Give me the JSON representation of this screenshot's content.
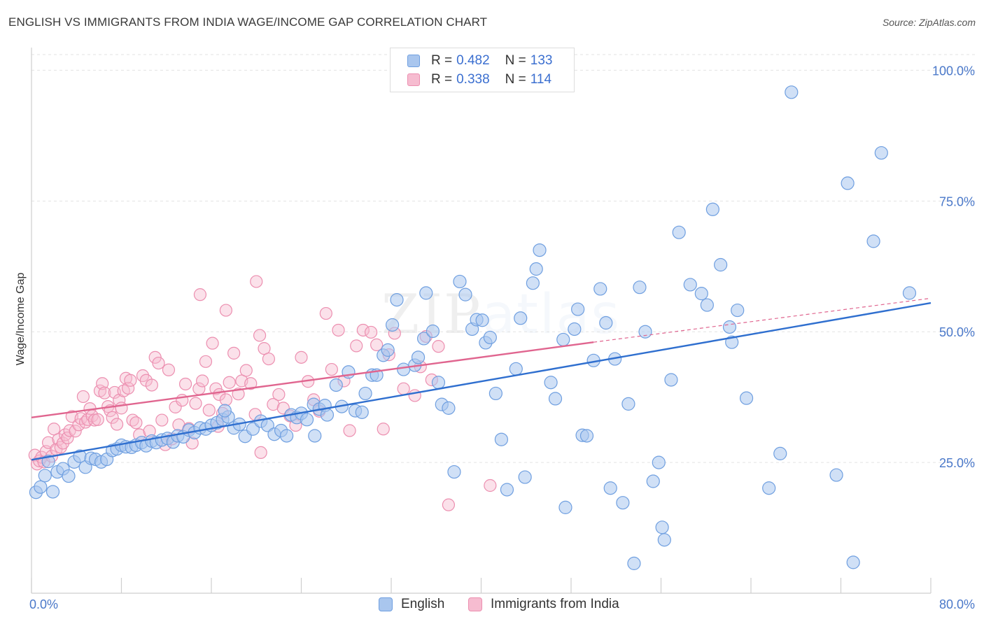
{
  "title": "ENGLISH VS IMMIGRANTS FROM INDIA WAGE/INCOME GAP CORRELATION CHART",
  "source": "Source: ZipAtlas.com",
  "watermark": {
    "zip": "ZIP",
    "atlas": "atlas"
  },
  "colors": {
    "english_fill": "#a9c6ee",
    "english_stroke": "#6f9fe0",
    "english_line": "#2f6fcf",
    "india_fill": "#f6bcd0",
    "india_stroke": "#ec8fb0",
    "india_line": "#e0658f",
    "grid": "#e3e3e3",
    "tick_label": "#4a78c9"
  },
  "legend": {
    "rows": [
      {
        "r_label": "R =",
        "r_value": "0.482",
        "n_label": "N =",
        "n_value": "133"
      },
      {
        "r_label": "R =",
        "r_value": "0.338",
        "n_label": "N =",
        "n_value": "114"
      }
    ]
  },
  "bottom_legend": {
    "english": "English",
    "india": "Immigrants from India"
  },
  "chart_data": {
    "type": "scatter",
    "title": "ENGLISH VS IMMIGRANTS FROM INDIA WAGE/INCOME GAP CORRELATION CHART",
    "xlabel": "",
    "ylabel": "Wage/Income Gap",
    "xlim": [
      0,
      80
    ],
    "ylim": [
      0,
      103
    ],
    "x_tick_labels": [
      "0.0%",
      "80.0%"
    ],
    "y_ticks": [
      25,
      50,
      75,
      100
    ],
    "y_tick_labels": [
      "25.0%",
      "50.0%",
      "75.0%",
      "100.0%"
    ],
    "grid": true,
    "legend_position": "top-center",
    "series": [
      {
        "name": "English",
        "r": 0.482,
        "n": 133,
        "trend": {
          "x0": 0,
          "y0": 25.5,
          "x1": 80,
          "y1": 55.5,
          "dash_to": null
        },
        "points": [
          [
            0.4,
            19.3
          ],
          [
            0.8,
            20.3
          ],
          [
            1.2,
            22.5
          ],
          [
            1.5,
            25.2
          ],
          [
            1.9,
            19.4
          ],
          [
            2.3,
            23.2
          ],
          [
            2.8,
            23.8
          ],
          [
            3.3,
            22.4
          ],
          [
            3.8,
            25.1
          ],
          [
            4.3,
            26.2
          ],
          [
            4.8,
            24.1
          ],
          [
            5.3,
            25.8
          ],
          [
            5.7,
            25.6
          ],
          [
            6.2,
            25.1
          ],
          [
            6.7,
            25.6
          ],
          [
            7.2,
            27.3
          ],
          [
            7.6,
            27.6
          ],
          [
            8.0,
            28.3
          ],
          [
            8.4,
            28.0
          ],
          [
            8.9,
            27.9
          ],
          [
            9.3,
            28.3
          ],
          [
            9.8,
            28.8
          ],
          [
            10.2,
            28.2
          ],
          [
            10.7,
            29.1
          ],
          [
            11.1,
            28.8
          ],
          [
            11.6,
            29.3
          ],
          [
            12.1,
            29.6
          ],
          [
            12.6,
            28.9
          ],
          [
            13.0,
            30.1
          ],
          [
            13.5,
            29.9
          ],
          [
            14.0,
            31.2
          ],
          [
            14.5,
            30.7
          ],
          [
            15.0,
            31.6
          ],
          [
            15.5,
            31.4
          ],
          [
            16.0,
            32.1
          ],
          [
            16.5,
            32.6
          ],
          [
            17.0,
            33.2
          ],
          [
            17.5,
            33.7
          ],
          [
            17.2,
            34.9
          ],
          [
            18.0,
            31.6
          ],
          [
            18.5,
            32.3
          ],
          [
            19.0,
            30.0
          ],
          [
            19.7,
            31.4
          ],
          [
            20.4,
            32.9
          ],
          [
            21.0,
            32.1
          ],
          [
            21.6,
            30.4
          ],
          [
            22.2,
            31.1
          ],
          [
            22.7,
            30.1
          ],
          [
            23.1,
            34.1
          ],
          [
            23.6,
            33.6
          ],
          [
            24.0,
            34.4
          ],
          [
            24.5,
            33.2
          ],
          [
            25.1,
            36.1
          ],
          [
            25.6,
            35.2
          ],
          [
            26.1,
            35.9
          ],
          [
            25.2,
            30.1
          ],
          [
            26.3,
            34.1
          ],
          [
            27.1,
            39.8
          ],
          [
            27.6,
            35.7
          ],
          [
            28.2,
            42.3
          ],
          [
            28.8,
            34.9
          ],
          [
            29.4,
            34.6
          ],
          [
            29.7,
            38.2
          ],
          [
            30.3,
            41.7
          ],
          [
            30.7,
            41.7
          ],
          [
            31.3,
            45.5
          ],
          [
            31.7,
            46.5
          ],
          [
            32.1,
            51.3
          ],
          [
            32.5,
            56.1
          ],
          [
            33.1,
            42.8
          ],
          [
            34.1,
            43.6
          ],
          [
            34.4,
            45.1
          ],
          [
            34.9,
            48.7
          ],
          [
            35.1,
            57.4
          ],
          [
            35.7,
            50.1
          ],
          [
            36.2,
            40.3
          ],
          [
            36.5,
            36.1
          ],
          [
            37.1,
            35.4
          ],
          [
            37.6,
            23.2
          ],
          [
            38.1,
            59.6
          ],
          [
            38.6,
            57.1
          ],
          [
            39.2,
            50.5
          ],
          [
            39.6,
            52.3
          ],
          [
            40.1,
            52.2
          ],
          [
            40.4,
            47.9
          ],
          [
            40.8,
            48.9
          ],
          [
            41.3,
            38.2
          ],
          [
            41.8,
            29.4
          ],
          [
            42.3,
            19.8
          ],
          [
            43.1,
            42.9
          ],
          [
            43.5,
            52.6
          ],
          [
            43.9,
            22.2
          ],
          [
            44.6,
            59.3
          ],
          [
            44.9,
            62.0
          ],
          [
            45.2,
            65.6
          ],
          [
            46.2,
            40.3
          ],
          [
            46.6,
            37.2
          ],
          [
            47.3,
            48.5
          ],
          [
            47.5,
            16.4
          ],
          [
            48.3,
            50.5
          ],
          [
            48.6,
            54.3
          ],
          [
            49.0,
            30.2
          ],
          [
            49.4,
            30.1
          ],
          [
            50.0,
            44.5
          ],
          [
            50.6,
            58.2
          ],
          [
            51.1,
            51.7
          ],
          [
            51.5,
            20.1
          ],
          [
            51.9,
            44.8
          ],
          [
            52.6,
            17.3
          ],
          [
            53.1,
            36.2
          ],
          [
            53.6,
            5.7
          ],
          [
            54.1,
            58.5
          ],
          [
            54.6,
            50.0
          ],
          [
            55.3,
            21.4
          ],
          [
            55.8,
            25.0
          ],
          [
            56.1,
            12.6
          ],
          [
            56.3,
            10.2
          ],
          [
            56.9,
            40.8
          ],
          [
            57.6,
            69.0
          ],
          [
            58.6,
            59.0
          ],
          [
            59.6,
            57.3
          ],
          [
            60.1,
            55.1
          ],
          [
            60.6,
            73.4
          ],
          [
            61.3,
            62.8
          ],
          [
            62.1,
            50.9
          ],
          [
            62.3,
            48.0
          ],
          [
            62.8,
            54.1
          ],
          [
            63.6,
            37.3
          ],
          [
            65.6,
            20.1
          ],
          [
            66.6,
            26.7
          ],
          [
            67.6,
            95.8
          ],
          [
            71.6,
            22.6
          ],
          [
            72.6,
            78.4
          ],
          [
            73.1,
            5.9
          ],
          [
            74.9,
            67.3
          ],
          [
            75.6,
            84.2
          ],
          [
            78.1,
            57.4
          ]
        ]
      },
      {
        "name": "Immigrants from India",
        "r": 0.338,
        "n": 114,
        "trend": {
          "x0": 0,
          "y0": 33.6,
          "x1": 50,
          "y1": 48.0,
          "dash_to": [
            80,
            56.4
          ]
        },
        "points": [
          [
            0.3,
            26.4
          ],
          [
            0.5,
            24.7
          ],
          [
            0.7,
            25.3
          ],
          [
            0.9,
            26.0
          ],
          [
            1.1,
            25.1
          ],
          [
            1.3,
            27.1
          ],
          [
            1.5,
            28.8
          ],
          [
            1.8,
            26.2
          ],
          [
            2.0,
            31.4
          ],
          [
            2.2,
            27.5
          ],
          [
            2.4,
            29.4
          ],
          [
            2.6,
            27.9
          ],
          [
            2.8,
            28.7
          ],
          [
            3.0,
            30.3
          ],
          [
            3.2,
            29.7
          ],
          [
            3.4,
            31.1
          ],
          [
            3.6,
            33.8
          ],
          [
            3.9,
            31.0
          ],
          [
            4.2,
            32.2
          ],
          [
            4.4,
            33.4
          ],
          [
            4.6,
            37.6
          ],
          [
            4.8,
            32.7
          ],
          [
            5.0,
            33.2
          ],
          [
            5.2,
            35.3
          ],
          [
            5.4,
            33.9
          ],
          [
            5.6,
            33.1
          ],
          [
            5.9,
            33.2
          ],
          [
            6.1,
            38.7
          ],
          [
            6.3,
            40.1
          ],
          [
            6.5,
            38.3
          ],
          [
            6.8,
            35.7
          ],
          [
            7.0,
            34.9
          ],
          [
            7.2,
            33.6
          ],
          [
            7.4,
            38.4
          ],
          [
            7.6,
            32.3
          ],
          [
            7.8,
            36.9
          ],
          [
            8.0,
            35.4
          ],
          [
            8.2,
            38.7
          ],
          [
            8.4,
            41.1
          ],
          [
            8.6,
            39.2
          ],
          [
            8.8,
            40.7
          ],
          [
            9.0,
            33.1
          ],
          [
            9.3,
            32.6
          ],
          [
            9.6,
            30.3
          ],
          [
            9.9,
            41.6
          ],
          [
            10.2,
            40.7
          ],
          [
            10.5,
            31.0
          ],
          [
            10.7,
            39.8
          ],
          [
            11.0,
            45.1
          ],
          [
            11.3,
            44.0
          ],
          [
            11.6,
            33.1
          ],
          [
            11.9,
            28.4
          ],
          [
            12.2,
            42.7
          ],
          [
            12.5,
            29.5
          ],
          [
            12.8,
            35.6
          ],
          [
            13.1,
            32.2
          ],
          [
            13.4,
            36.9
          ],
          [
            13.7,
            40.0
          ],
          [
            14.0,
            31.5
          ],
          [
            14.3,
            28.7
          ],
          [
            14.6,
            36.3
          ],
          [
            14.9,
            39.1
          ],
          [
            15.2,
            40.6
          ],
          [
            15.5,
            44.3
          ],
          [
            15.8,
            35.0
          ],
          [
            16.1,
            47.8
          ],
          [
            16.4,
            39.1
          ],
          [
            16.7,
            38.0
          ],
          [
            17.0,
            34.4
          ],
          [
            17.3,
            37.0
          ],
          [
            17.6,
            40.3
          ],
          [
            18.0,
            45.9
          ],
          [
            18.4,
            38.1
          ],
          [
            18.7,
            40.6
          ],
          [
            19.1,
            42.6
          ],
          [
            19.5,
            40.1
          ],
          [
            19.9,
            34.2
          ],
          [
            20.3,
            49.3
          ],
          [
            20.7,
            46.8
          ],
          [
            21.1,
            44.8
          ],
          [
            21.5,
            36.1
          ],
          [
            22.0,
            38.0
          ],
          [
            22.4,
            35.4
          ],
          [
            23.0,
            33.9
          ],
          [
            23.5,
            32.1
          ],
          [
            24.0,
            45.1
          ],
          [
            24.6,
            40.5
          ],
          [
            25.1,
            37.0
          ],
          [
            25.6,
            34.8
          ],
          [
            26.2,
            53.5
          ],
          [
            26.7,
            42.8
          ],
          [
            27.3,
            50.3
          ],
          [
            27.8,
            40.6
          ],
          [
            28.3,
            31.1
          ],
          [
            28.9,
            47.3
          ],
          [
            29.5,
            50.3
          ],
          [
            30.2,
            49.9
          ],
          [
            30.7,
            47.5
          ],
          [
            31.3,
            31.4
          ],
          [
            31.8,
            45.6
          ],
          [
            32.3,
            49.7
          ],
          [
            33.1,
            39.1
          ],
          [
            34.1,
            37.8
          ],
          [
            34.6,
            43.3
          ],
          [
            35.1,
            49.1
          ],
          [
            35.6,
            40.8
          ],
          [
            36.2,
            47.2
          ],
          [
            37.1,
            16.9
          ],
          [
            40.8,
            20.6
          ],
          [
            15.0,
            57.1
          ],
          [
            20.0,
            59.6
          ],
          [
            17.3,
            54.1
          ],
          [
            20.4,
            26.9
          ],
          [
            16.6,
            31.9
          ]
        ]
      }
    ]
  }
}
